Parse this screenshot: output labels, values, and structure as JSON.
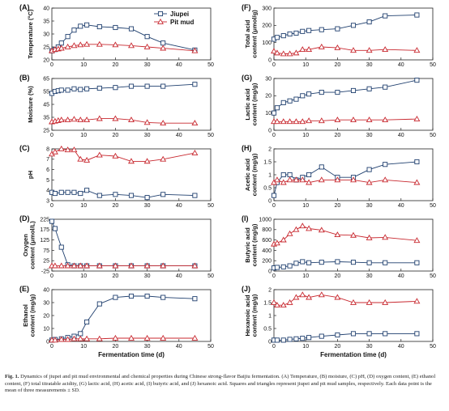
{
  "caption": {
    "label": "Fig. 1.",
    "text": "Dynamics of jiupei and pit mud environmental and chemical properties during Chinese strong-flavor Baijiu fermentation. (A) Temperature, (B) moisture, (C) pH, (D) oxygen content, (E) ethanol content, (F) total titratable acidity, (G) lactic acid, (H) acetic acid, (I) butyric acid, and (J) hexanoic acid. Squares and triangles represent jiupei and pit mud samples, respectively. Each data point is the mean of three measurements ± SD."
  },
  "legend": {
    "placement": "top-right of panel A",
    "items": [
      {
        "name": "Jiupei",
        "marker": "square",
        "color": "#1f3f6e"
      },
      {
        "name": "Pit mud",
        "marker": "triangle",
        "color": "#c8282f"
      }
    ]
  },
  "colors": {
    "jiupei": "#1f3f6e",
    "pit_mud": "#c8282f",
    "axis": "#222222"
  },
  "chart_data": [
    {
      "panel": "(A)",
      "type": "line",
      "ylabel": "Temperature (°C)",
      "ylim": [
        20,
        40
      ],
      "yticks": [
        20,
        25,
        30,
        35,
        40
      ],
      "xlim": [
        0,
        50
      ],
      "xticks": [
        0,
        10,
        20,
        30,
        40,
        50
      ],
      "series": [
        {
          "name": "Jiupei",
          "x": [
            0,
            1,
            2,
            3,
            5,
            7,
            9,
            11,
            15,
            20,
            25,
            30,
            35,
            45
          ],
          "y": [
            23.5,
            24,
            25,
            26.5,
            29,
            31.5,
            33,
            33.5,
            32.8,
            32.5,
            32,
            29,
            26.5,
            23.8
          ]
        },
        {
          "name": "Pit mud",
          "x": [
            0,
            1,
            2,
            3,
            5,
            7,
            9,
            11,
            15,
            20,
            25,
            30,
            35,
            45
          ],
          "y": [
            23.5,
            24,
            24.2,
            24.5,
            25,
            25.5,
            25.8,
            26,
            26,
            25.8,
            25.5,
            25,
            24.5,
            23.5
          ]
        }
      ]
    },
    {
      "panel": "(B)",
      "type": "line",
      "ylabel": "Moisture (%)",
      "ylim": [
        25,
        65
      ],
      "yticks": [
        25,
        35,
        45,
        55,
        65
      ],
      "xlim": [
        0,
        50
      ],
      "xticks": [
        0,
        10,
        20,
        30,
        40,
        50
      ],
      "series": [
        {
          "name": "Jiupei",
          "x": [
            0,
            1,
            2,
            3,
            5,
            7,
            9,
            11,
            15,
            20,
            25,
            30,
            35,
            45
          ],
          "y": [
            53.5,
            55,
            55.5,
            56,
            56,
            57,
            56.5,
            57,
            57.5,
            58,
            59,
            59,
            59,
            60.5
          ]
        },
        {
          "name": "Pit mud",
          "x": [
            0,
            1,
            2,
            3,
            5,
            7,
            9,
            11,
            15,
            20,
            25,
            30,
            35,
            45
          ],
          "y": [
            31.5,
            32,
            32.5,
            33,
            33,
            33.5,
            33,
            33,
            34,
            34,
            33,
            31,
            30.5,
            30.5
          ]
        }
      ]
    },
    {
      "panel": "(C)",
      "type": "line",
      "ylabel": "pH",
      "ylim": [
        3,
        8
      ],
      "yticks": [
        3,
        4,
        5,
        6,
        7,
        8
      ],
      "xlim": [
        0,
        50
      ],
      "xticks": [
        0,
        10,
        20,
        30,
        40,
        50
      ],
      "series": [
        {
          "name": "Jiupei",
          "x": [
            0,
            1,
            3,
            5,
            7,
            9,
            11,
            15,
            20,
            25,
            30,
            35,
            45
          ],
          "y": [
            3.8,
            3.7,
            3.8,
            3.8,
            3.8,
            3.7,
            4.0,
            3.5,
            3.6,
            3.5,
            3.3,
            3.6,
            3.5
          ]
        },
        {
          "name": "Pit mud",
          "x": [
            0,
            1,
            3,
            5,
            7,
            9,
            11,
            15,
            20,
            25,
            30,
            35,
            45
          ],
          "y": [
            7.5,
            7.7,
            8.0,
            7.9,
            7.9,
            7.0,
            6.9,
            7.4,
            7.3,
            6.8,
            6.8,
            7.0,
            7.6
          ]
        }
      ]
    },
    {
      "panel": "(D)",
      "type": "line",
      "ylabel": "Oxygen content (μmol/L)",
      "ylim": [
        -25,
        225
      ],
      "yticks": [
        -25,
        25,
        75,
        125,
        175,
        225
      ],
      "xlim": [
        0,
        50
      ],
      "xticks": [
        0,
        10,
        20,
        30,
        40,
        50
      ],
      "series": [
        {
          "name": "Jiupei",
          "x": [
            0,
            1,
            3,
            5,
            7,
            9,
            11,
            15,
            20,
            25,
            30,
            35,
            45
          ],
          "y": [
            215,
            180,
            90,
            5,
            0,
            0,
            0,
            0,
            0,
            0,
            0,
            0,
            0
          ]
        },
        {
          "name": "Pit mud",
          "x": [
            0,
            1,
            3,
            5,
            7,
            9,
            11,
            15,
            20,
            25,
            30,
            35,
            45
          ],
          "y": [
            0,
            0,
            0,
            0,
            0,
            0,
            0,
            0,
            0,
            0,
            0,
            0,
            0
          ]
        }
      ]
    },
    {
      "panel": "(E)",
      "type": "line",
      "ylabel": "Ethanol content (mg/g)",
      "ylim": [
        0,
        40
      ],
      "yticks": [
        0,
        10,
        20,
        30,
        40
      ],
      "xlim": [
        0,
        50
      ],
      "xticks": [
        0,
        10,
        20,
        30,
        40,
        50
      ],
      "xlabel": "Fermentation time (d)",
      "series": [
        {
          "name": "Jiupei",
          "x": [
            0,
            1,
            3,
            5,
            7,
            9,
            11,
            15,
            20,
            25,
            30,
            35,
            45
          ],
          "y": [
            1,
            1.5,
            2,
            3,
            4,
            6,
            15,
            29,
            34,
            35,
            35,
            34,
            33
          ]
        },
        {
          "name": "Pit mud",
          "x": [
            0,
            1,
            3,
            5,
            7,
            9,
            11,
            15,
            20,
            25,
            30,
            35,
            45
          ],
          "y": [
            1,
            1,
            1.5,
            1.5,
            2,
            2,
            2,
            2,
            2.5,
            2.5,
            2.5,
            2.5,
            2.5
          ]
        }
      ]
    },
    {
      "panel": "(F)",
      "type": "line",
      "ylabel": "Total acid content (μmol/g)",
      "ylim": [
        0,
        300
      ],
      "yticks": [
        0,
        100,
        200,
        300
      ],
      "xlim": [
        0,
        50
      ],
      "xticks": [
        0,
        10,
        20,
        30,
        40,
        50
      ],
      "series": [
        {
          "name": "Jiupei",
          "x": [
            0,
            1,
            3,
            5,
            7,
            9,
            11,
            15,
            20,
            25,
            30,
            35,
            45
          ],
          "y": [
            120,
            130,
            140,
            150,
            155,
            165,
            170,
            175,
            180,
            200,
            220,
            255,
            260
          ]
        },
        {
          "name": "Pit mud",
          "x": [
            0,
            1,
            3,
            5,
            7,
            9,
            11,
            15,
            20,
            25,
            30,
            35,
            45
          ],
          "y": [
            50,
            40,
            35,
            35,
            40,
            60,
            60,
            75,
            70,
            55,
            55,
            60,
            55
          ]
        }
      ]
    },
    {
      "panel": "(G)",
      "type": "line",
      "ylabel": "Lactic acid content (mg/g)",
      "ylim": [
        0,
        30
      ],
      "yticks": [
        0,
        10,
        20,
        30
      ],
      "xlim": [
        0,
        50
      ],
      "xticks": [
        0,
        10,
        20,
        30,
        40,
        50
      ],
      "series": [
        {
          "name": "Jiupei",
          "x": [
            0,
            1,
            3,
            5,
            7,
            9,
            11,
            15,
            20,
            25,
            30,
            35,
            45
          ],
          "y": [
            10,
            13,
            16,
            17,
            18,
            20,
            21,
            22,
            22,
            23,
            24,
            25,
            29
          ]
        },
        {
          "name": "Pit mud",
          "x": [
            0,
            1,
            3,
            5,
            7,
            9,
            11,
            15,
            20,
            25,
            30,
            35,
            45
          ],
          "y": [
            5,
            5,
            5,
            5,
            5,
            5,
            5.5,
            5.5,
            6,
            6,
            6,
            6,
            6.5
          ]
        }
      ]
    },
    {
      "panel": "(H)",
      "type": "line",
      "ylabel": "Acetic acid content (mg/g)",
      "ylim": [
        0,
        2
      ],
      "yticks": [
        0,
        0.5,
        1,
        1.5,
        2
      ],
      "xlim": [
        0,
        50
      ],
      "xticks": [
        0,
        10,
        20,
        30,
        40,
        50
      ],
      "series": [
        {
          "name": "Jiupei",
          "x": [
            0,
            1,
            3,
            5,
            7,
            9,
            11,
            15,
            20,
            25,
            30,
            35,
            45
          ],
          "y": [
            0.2,
            0.7,
            1.0,
            1.0,
            0.8,
            0.9,
            1.0,
            1.3,
            0.9,
            0.9,
            1.2,
            1.4,
            1.5
          ]
        },
        {
          "name": "Pit mud",
          "x": [
            0,
            1,
            3,
            5,
            7,
            9,
            11,
            15,
            20,
            25,
            30,
            35,
            45
          ],
          "y": [
            0.7,
            0.8,
            0.7,
            0.8,
            0.8,
            0.8,
            0.7,
            0.8,
            0.8,
            0.8,
            0.7,
            0.8,
            0.7
          ]
        }
      ]
    },
    {
      "panel": "(I)",
      "type": "line",
      "ylabel": "Butyric acid content (mg/g)",
      "ylim": [
        0,
        1000
      ],
      "yticks": [
        0,
        200,
        400,
        600,
        800,
        1000
      ],
      "xlim": [
        0,
        50
      ],
      "xticks": [
        0,
        10,
        20,
        30,
        40,
        50
      ],
      "series": [
        {
          "name": "Jiupei",
          "x": [
            0,
            1,
            3,
            5,
            7,
            9,
            11,
            15,
            20,
            25,
            30,
            35,
            45
          ],
          "y": [
            60,
            70,
            80,
            100,
            150,
            180,
            160,
            170,
            180,
            170,
            160,
            160,
            160
          ]
        },
        {
          "name": "Pit mud",
          "x": [
            0,
            1,
            3,
            5,
            7,
            9,
            11,
            15,
            20,
            25,
            30,
            35,
            45
          ],
          "y": [
            520,
            540,
            600,
            720,
            800,
            870,
            820,
            790,
            700,
            690,
            640,
            650,
            590
          ]
        }
      ]
    },
    {
      "panel": "(J)",
      "type": "line",
      "ylabel": "Hexanoic acid content (mg/g)",
      "ylim": [
        0,
        2
      ],
      "yticks": [
        0,
        0.5,
        1,
        1.5,
        2
      ],
      "xlim": [
        0,
        50
      ],
      "xticks": [
        0,
        10,
        20,
        30,
        40,
        50
      ],
      "xlabel": "Fermentation time (d)",
      "series": [
        {
          "name": "Jiupei",
          "x": [
            0,
            1,
            3,
            5,
            7,
            9,
            11,
            15,
            20,
            25,
            30,
            35,
            45
          ],
          "y": [
            0.05,
            0.05,
            0.05,
            0.08,
            0.1,
            0.12,
            0.15,
            0.2,
            0.25,
            0.3,
            0.3,
            0.3,
            0.3
          ]
        },
        {
          "name": "Pit mud",
          "x": [
            0,
            1,
            3,
            5,
            7,
            9,
            11,
            15,
            20,
            25,
            30,
            35,
            45
          ],
          "y": [
            1.5,
            1.4,
            1.4,
            1.5,
            1.7,
            1.8,
            1.7,
            1.8,
            1.7,
            1.5,
            1.5,
            1.5,
            1.55
          ]
        }
      ]
    }
  ]
}
